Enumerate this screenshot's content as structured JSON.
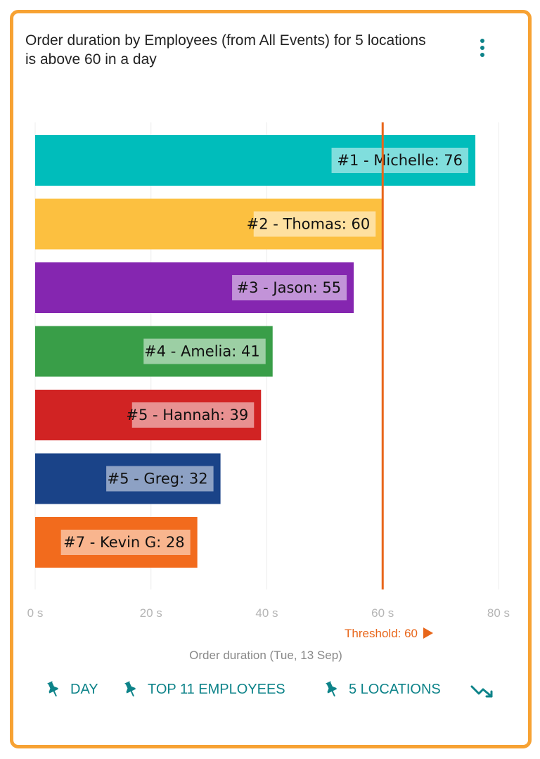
{
  "card": {
    "title": "Order duration by Employees (from All Events) for 5 locations is above 60 in a day",
    "menu_icon": "more-vertical-icon"
  },
  "chart_data": {
    "type": "bar",
    "orientation": "horizontal",
    "categories": [
      "#1 - Michelle",
      "#2 - Thomas",
      "#3 - Jason",
      "#4 - Amelia",
      "#5 - Hannah",
      "#5 - Greg",
      "#7 - Kevin G"
    ],
    "values": [
      76,
      60,
      55,
      41,
      39,
      32,
      28
    ],
    "data_labels": [
      "#1 - Michelle: 76",
      "#2 - Thomas: 60",
      "#3 - Jason: 55",
      "#4 - Amelia: 41",
      "#5 - Hannah: 39",
      "#5 - Greg: 32",
      "#7 - Kevin G: 28"
    ],
    "colors": [
      "#00bdbb",
      "#fcc040",
      "#8526b0",
      "#399e48",
      "#d12323",
      "#1a4388",
      "#f26b1d"
    ],
    "xlim": [
      0,
      80
    ],
    "x_ticks": [
      0,
      20,
      40,
      60,
      80
    ],
    "x_tick_labels": [
      "0 s",
      "20 s",
      "40 s",
      "60 s",
      "80 s"
    ],
    "xlabel": "Order duration (Tue, 13 Sep)",
    "threshold": {
      "value": 60,
      "label": "Threshold: 60",
      "color": "#e8661a"
    },
    "grid": true
  },
  "footer": {
    "chips": [
      {
        "label": "DAY",
        "icon": "pin-icon"
      },
      {
        "label": "TOP 11 EMPLOYEES",
        "icon": "pin-icon"
      },
      {
        "label": "5 LOCATIONS",
        "icon": "pin-icon"
      }
    ],
    "trend_icon": "trending-down-icon",
    "accent": "#0d8389"
  }
}
